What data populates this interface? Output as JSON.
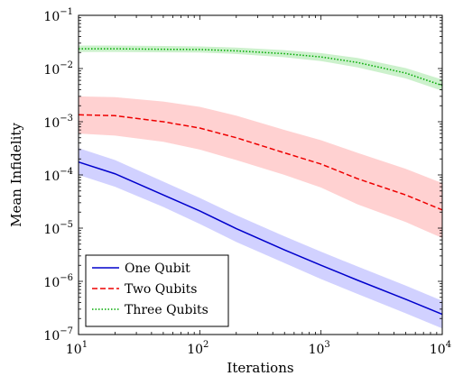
{
  "chart_data": {
    "type": "line",
    "xlabel": "Iterations",
    "ylabel": "Mean Infidelity",
    "xscale": "log",
    "yscale": "log",
    "xlim": [
      10,
      10000
    ],
    "ylim": [
      1e-07,
      0.1
    ],
    "x_ticks": [
      {
        "value": 10,
        "base": "10",
        "exp": "1"
      },
      {
        "value": 100,
        "base": "10",
        "exp": "2"
      },
      {
        "value": 1000,
        "base": "10",
        "exp": "3"
      },
      {
        "value": 10000,
        "base": "10",
        "exp": "4"
      }
    ],
    "y_ticks": [
      {
        "value": 1e-07,
        "base": "10",
        "exp": "−7"
      },
      {
        "value": 1e-06,
        "base": "10",
        "exp": "−6"
      },
      {
        "value": 1e-05,
        "base": "10",
        "exp": "−5"
      },
      {
        "value": 0.0001,
        "base": "10",
        "exp": "−4"
      },
      {
        "value": 0.001,
        "base": "10",
        "exp": "−3"
      },
      {
        "value": 0.01,
        "base": "10",
        "exp": "−2"
      },
      {
        "value": 0.1,
        "base": "10",
        "exp": "−1"
      }
    ],
    "grid": false,
    "legend_position": "bottom-left",
    "series": [
      {
        "name": "One Qubit",
        "color": "#0000cc",
        "band_color": "#ccccff",
        "dash": "solid",
        "x": [
          10,
          20,
          50,
          100,
          200,
          500,
          1000,
          2000,
          5000,
          10000
        ],
        "y": [
          0.000175,
          0.000105,
          4.2e-05,
          2.1e-05,
          9.8e-06,
          3.9e-06,
          2e-06,
          1.05e-06,
          4.6e-07,
          2.4e-07
        ],
        "lower": [
          0.0001,
          6e-05,
          2.5e-05,
          1.2e-05,
          5.5e-06,
          2.2e-06,
          1.1e-06,
          5.8e-07,
          2.5e-07,
          1.3e-07
        ],
        "upper": [
          0.00032,
          0.00019,
          7.5e-05,
          3.7e-05,
          1.75e-05,
          7e-06,
          3.6e-06,
          1.9e-06,
          8.3e-07,
          4.3e-07
        ]
      },
      {
        "name": "Two Qubits",
        "color": "#ee0000",
        "band_color": "#ffcccc",
        "dash": "dashed",
        "x": [
          10,
          20,
          50,
          100,
          200,
          500,
          1000,
          2000,
          5000,
          10000
        ],
        "y": [
          0.00135,
          0.0013,
          0.001,
          0.00076,
          0.0005,
          0.00026,
          0.00016,
          8.5e-05,
          4.2e-05,
          2.2e-05
        ],
        "lower": [
          0.0006,
          0.00055,
          0.00042,
          0.0003,
          0.00019,
          0.0001,
          5.8e-05,
          2.8e-05,
          1.3e-05,
          6.5e-06
        ],
        "upper": [
          0.003,
          0.0029,
          0.0024,
          0.0019,
          0.0013,
          0.0007,
          0.00045,
          0.00026,
          0.00013,
          7e-05
        ]
      },
      {
        "name": "Three Qubits",
        "color": "#00aa00",
        "band_color": "#c6efc6",
        "dash": "dotted",
        "x": [
          10,
          20,
          50,
          100,
          200,
          500,
          1000,
          2000,
          5000,
          10000
        ],
        "y": [
          0.0235,
          0.0235,
          0.023,
          0.0228,
          0.0215,
          0.019,
          0.0165,
          0.013,
          0.0082,
          0.0048
        ],
        "lower": [
          0.0205,
          0.0205,
          0.0202,
          0.02,
          0.0188,
          0.0163,
          0.0138,
          0.0105,
          0.0065,
          0.0038
        ],
        "upper": [
          0.027,
          0.027,
          0.0265,
          0.026,
          0.0248,
          0.0222,
          0.0195,
          0.0158,
          0.0102,
          0.0062
        ]
      }
    ]
  }
}
